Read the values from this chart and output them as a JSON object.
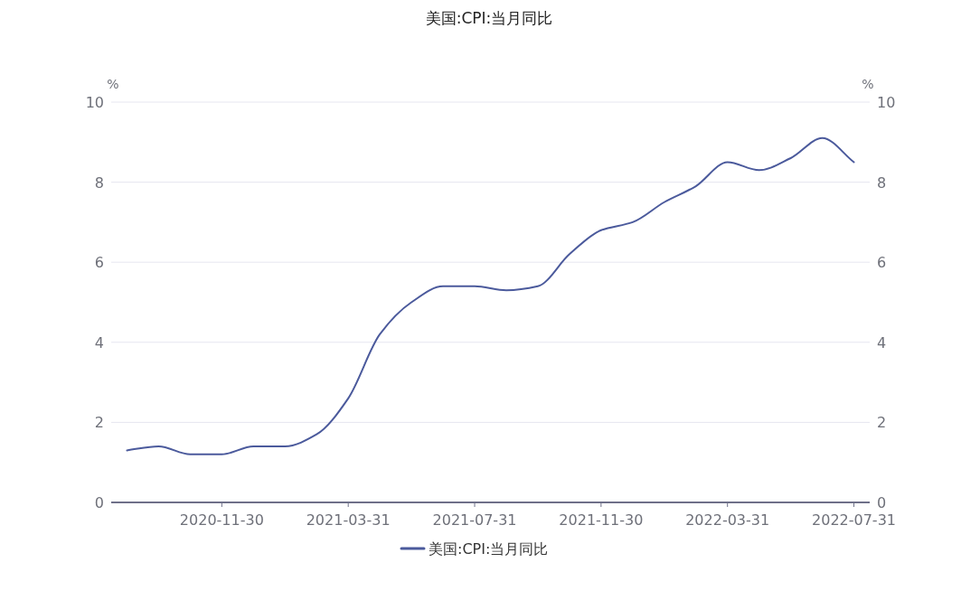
{
  "chart_data": {
    "type": "line",
    "title": "美国:CPI:当月同比",
    "categories": [
      null,
      null,
      null,
      "2020-11-30",
      null,
      null,
      null,
      "2021-03-31",
      null,
      null,
      null,
      "2021-07-31",
      null,
      null,
      null,
      "2021-11-30",
      null,
      null,
      null,
      "2022-03-31",
      null,
      null,
      null,
      "2022-07-31"
    ],
    "series": [
      {
        "name": "美国:CPI:当月同比",
        "color": "#4b5a9c",
        "values": [
          1.3,
          1.4,
          1.2,
          1.2,
          1.4,
          1.4,
          1.7,
          2.6,
          4.2,
          5.0,
          5.4,
          5.4,
          5.3,
          5.4,
          6.2,
          6.8,
          7.0,
          7.5,
          7.9,
          8.5,
          8.3,
          8.6,
          9.1,
          8.5
        ]
      }
    ],
    "ylabel": "%",
    "y2label": "%",
    "ylim": [
      0,
      10
    ],
    "yticks": [
      0,
      2,
      4,
      6,
      8,
      10
    ],
    "y2lim": [
      0,
      10
    ],
    "y2ticks": [
      0,
      2,
      4,
      6,
      8,
      10
    ],
    "grid": "y",
    "legend": "bottom",
    "marker": "none",
    "line_style": "solid"
  }
}
